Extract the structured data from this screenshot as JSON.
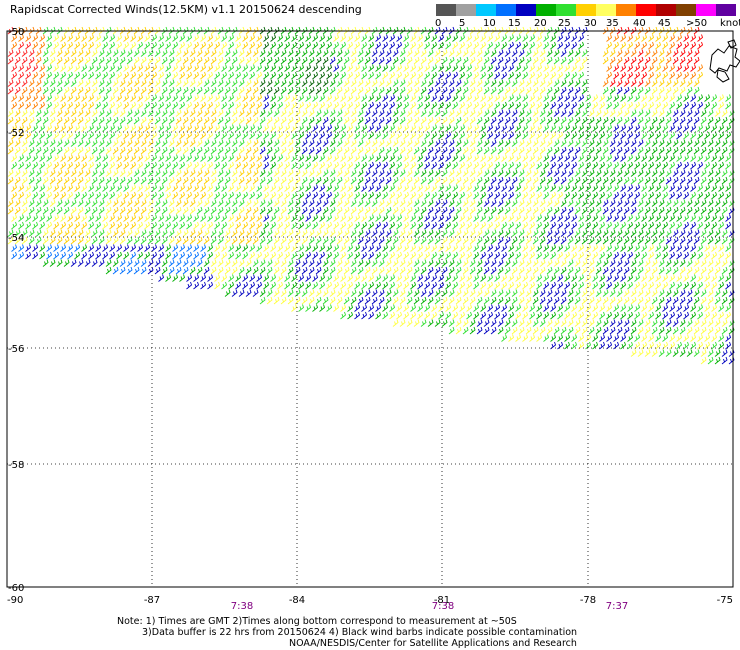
{
  "title": "Rapidscat Corrected Winds(12.5KM) v1.1 20150624 descending",
  "legend": {
    "units": "knots",
    "labels": [
      "0",
      "5",
      "10",
      "15",
      "20",
      "25",
      "30",
      "35",
      "40",
      "45",
      ">50"
    ],
    "colors": [
      "#555555",
      "#a0a0a0",
      "#00c8ff",
      "#0070ff",
      "#0000c0",
      "#00b000",
      "#30e030",
      "#ffd000",
      "#ffff60",
      "#ff8000",
      "#ff0000",
      "#b00000",
      "#804000",
      "#ff00ff",
      "#6000a0"
    ]
  },
  "axes": {
    "lon_labels": [
      "-90",
      "-87",
      "-84",
      "-81",
      "-78",
      "-75"
    ],
    "lat_labels": [
      "-50",
      "-52",
      "-54",
      "-56",
      "-58",
      "-60"
    ],
    "times": [
      "7:38",
      "7:38",
      "7:37"
    ]
  },
  "notes": {
    "line1": "Note: 1) Times are GMT 2)Times along bottom correspond to measurement at ~50S",
    "line2": "3)Data buffer is 22 hrs from 20150624 4) Black wind barbs indicate possible contamination",
    "line3": "NOAA/NESDIS/Center for Satellite Applications and Research"
  }
}
